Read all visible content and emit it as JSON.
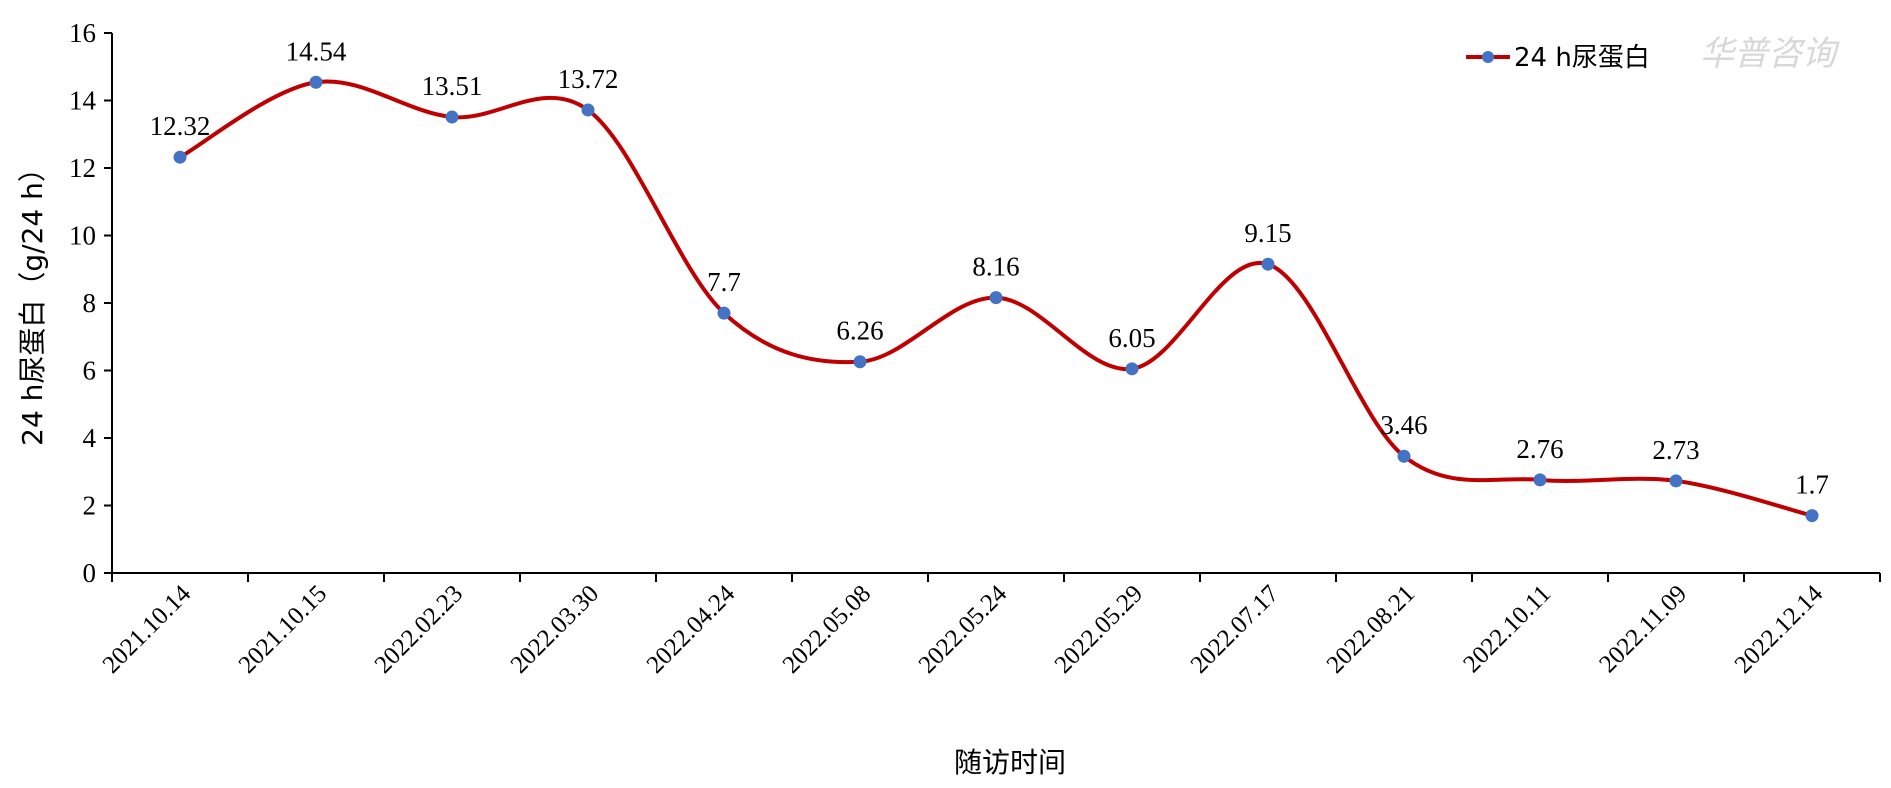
{
  "chart_data": {
    "type": "line",
    "smooth": true,
    "categories": [
      "2021.10.14",
      "2021.10.15",
      "2022.02.23",
      "2022.03.30",
      "2022.04.24",
      "2022.05.08",
      "2022.05.24",
      "2022.05.29",
      "2022.07.17",
      "2022.08.21",
      "2022.10.11",
      "2022.11.09",
      "2022.12.14"
    ],
    "series": [
      {
        "name": "24 h尿蛋白",
        "values": [
          12.32,
          14.54,
          13.51,
          13.72,
          7.7,
          6.26,
          8.16,
          6.05,
          9.15,
          3.46,
          2.76,
          2.73,
          1.7
        ],
        "labels": [
          "12.32",
          "14.54",
          "13.51",
          "13.72",
          "7.7",
          "6.26",
          "8.16",
          "6.05",
          "9.15",
          "3.46",
          "2.76",
          "2.73",
          "1.7"
        ],
        "line_color": "#c00000",
        "marker_color": "#4472c4"
      }
    ],
    "xlabel": "随访时间",
    "ylabel": "24 h尿蛋白（g/24 h）",
    "ylim": [
      0,
      16
    ],
    "yticks": [
      "0",
      "2",
      "4",
      "6",
      "8",
      "10",
      "12",
      "14",
      "16"
    ],
    "grid": false,
    "legend": "top-right"
  },
  "watermark": "华普咨询"
}
